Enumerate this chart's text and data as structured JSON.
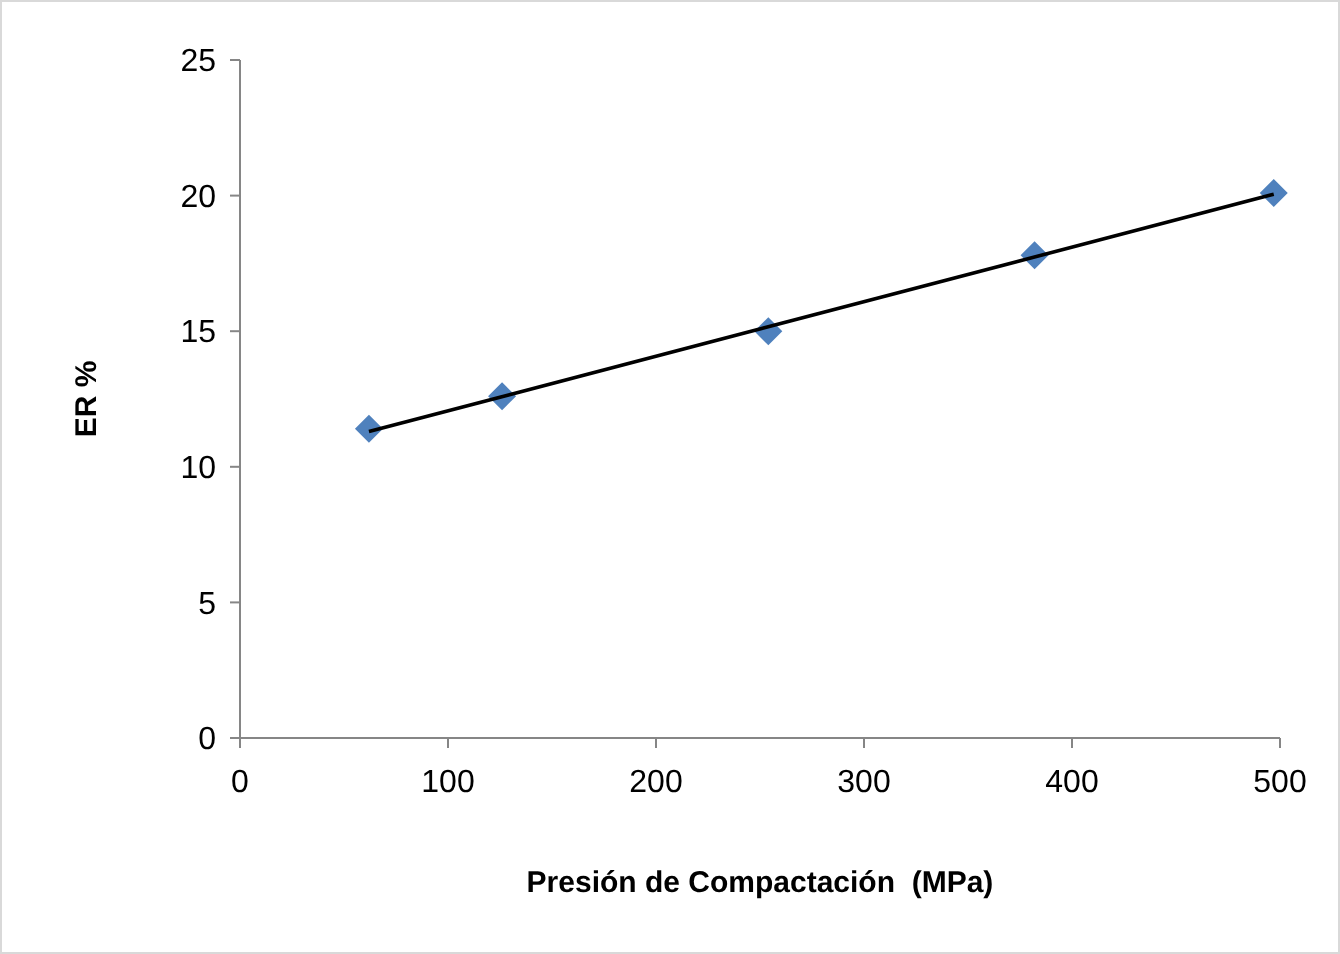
{
  "chart_data": {
    "type": "scatter",
    "xlabel": "Presión de Compactación  (MPa)",
    "ylabel": "ER %",
    "xlim": [
      0,
      500
    ],
    "xticks": [
      0,
      100,
      200,
      300,
      400,
      500
    ],
    "ylim": [
      0,
      25
    ],
    "yticks": [
      0,
      5,
      10,
      15,
      20,
      25
    ],
    "grid": false,
    "marker": "diamond",
    "series": [
      {
        "color": "#4f81bd",
        "x": [
          62,
          126,
          254,
          382,
          497
        ],
        "values": [
          11.4,
          12.6,
          15.0,
          17.8,
          20.1
        ]
      },
      {
        "type": "line",
        "color": "#000000",
        "marker": "none",
        "x": [
          62,
          497
        ],
        "values": [
          11.3,
          20.05
        ]
      }
    ]
  }
}
